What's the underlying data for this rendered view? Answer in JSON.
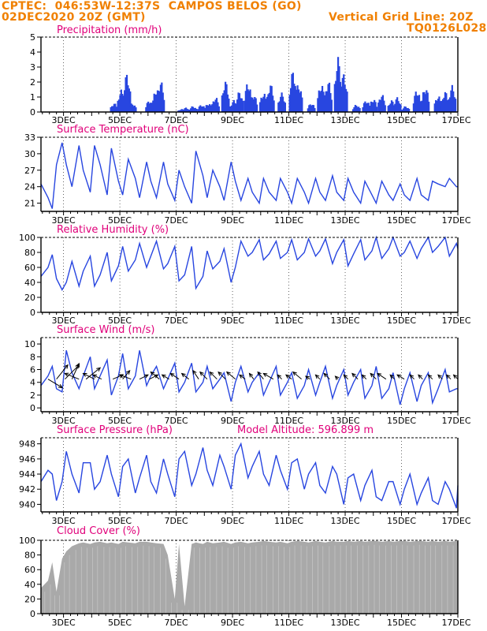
{
  "header": {
    "line1": "CPTEC:  046:53W-12:37S  CAMPOS BELOS (GO)",
    "line2": "02DEC2020 20Z (GMT)",
    "right1": "Vertical Grid Line: 20Z",
    "right2": "TQ0126L028"
  },
  "colors": {
    "header": "#f08000",
    "title": "#e0007a",
    "line": "#2846e0",
    "bar": "#2846e0",
    "cloud": "#a9a9a9",
    "axis": "#000000"
  },
  "chart_data": [
    {
      "type": "bar",
      "title": "Precipitation (mm/h)",
      "x_tick_labels": [
        "3DEC",
        "5DEC",
        "7DEC",
        "9DEC",
        "11DEC",
        "13DEC",
        "15DEC",
        "17DEC"
      ],
      "x_tick_days": [
        3,
        5,
        7,
        9,
        11,
        13,
        15,
        17
      ],
      "x_range_days": [
        2.2,
        17
      ],
      "ylim": [
        0,
        5
      ],
      "yticks": [
        0,
        1,
        2,
        3,
        4,
        5
      ],
      "bursts": [
        [
          4.8,
          0.6
        ],
        [
          5.05,
          1.5
        ],
        [
          5.25,
          2.6
        ],
        [
          5.45,
          0.6
        ],
        [
          6.05,
          0.8
        ],
        [
          6.3,
          1.6
        ],
        [
          6.45,
          2.1
        ],
        [
          7.2,
          0.2
        ],
        [
          7.35,
          0.3
        ],
        [
          7.6,
          0.4
        ],
        [
          7.9,
          0.5
        ],
        [
          8.15,
          0.6
        ],
        [
          8.4,
          1.0
        ],
        [
          8.75,
          2.1
        ],
        [
          9.05,
          0.8
        ],
        [
          9.25,
          1.4
        ],
        [
          9.55,
          2.0
        ],
        [
          9.75,
          1.2
        ],
        [
          10.1,
          1.3
        ],
        [
          10.35,
          1.9
        ],
        [
          10.75,
          1.3
        ],
        [
          11.15,
          2.8
        ],
        [
          11.35,
          1.9
        ],
        [
          11.8,
          0.6
        ],
        [
          12.15,
          1.9
        ],
        [
          12.4,
          2.1
        ],
        [
          12.75,
          3.7
        ],
        [
          12.95,
          2.6
        ],
        [
          13.4,
          0.5
        ],
        [
          13.75,
          0.8
        ],
        [
          14.0,
          0.9
        ],
        [
          14.3,
          1.2
        ],
        [
          14.65,
          0.8
        ],
        [
          14.85,
          1.0
        ],
        [
          15.15,
          0.4
        ],
        [
          15.55,
          1.5
        ],
        [
          15.85,
          1.7
        ],
        [
          16.3,
          1.1
        ],
        [
          16.55,
          1.4
        ],
        [
          16.8,
          1.8
        ]
      ]
    },
    {
      "type": "line",
      "title": "Surface Temperature (nC)",
      "x_tick_labels": [
        "3DEC",
        "5DEC",
        "7DEC",
        "9DEC",
        "11DEC",
        "13DEC",
        "15DEC",
        "17DEC"
      ],
      "x_tick_days": [
        3,
        5,
        7,
        9,
        11,
        13,
        15,
        17
      ],
      "x_range_days": [
        2.2,
        17
      ],
      "ylim": [
        19.5,
        33
      ],
      "yticks": [
        21,
        24,
        27,
        30,
        33
      ],
      "x": [
        2.2,
        2.45,
        2.6,
        2.75,
        2.95,
        3.1,
        3.3,
        3.55,
        3.7,
        3.95,
        4.1,
        4.3,
        4.55,
        4.7,
        4.95,
        5.1,
        5.3,
        5.55,
        5.7,
        5.95,
        6.1,
        6.3,
        6.55,
        6.7,
        6.95,
        7.1,
        7.3,
        7.55,
        7.7,
        7.95,
        8.1,
        8.3,
        8.55,
        8.7,
        8.95,
        9.1,
        9.3,
        9.55,
        9.7,
        9.95,
        10.1,
        10.3,
        10.55,
        10.7,
        10.95,
        11.1,
        11.3,
        11.55,
        11.7,
        11.95,
        12.1,
        12.3,
        12.55,
        12.7,
        12.95,
        13.1,
        13.3,
        13.55,
        13.7,
        13.95,
        14.1,
        14.3,
        14.55,
        14.7,
        14.95,
        15.1,
        15.3,
        15.55,
        15.7,
        15.95,
        16.1,
        16.3,
        16.55,
        16.7,
        16.95,
        17.0
      ],
      "y": [
        24.5,
        22.0,
        20.0,
        28.0,
        32.0,
        28.0,
        24.0,
        31.5,
        27.0,
        23.0,
        31.5,
        28.0,
        22.5,
        31.0,
        25.0,
        22.5,
        29.0,
        25.5,
        22.0,
        28.5,
        25.0,
        22.0,
        28.5,
        24.5,
        21.5,
        27.0,
        24.0,
        21.0,
        30.5,
        26.0,
        22.0,
        27.0,
        24.0,
        21.5,
        28.5,
        25.0,
        21.5,
        25.5,
        23.0,
        21.0,
        25.5,
        23.0,
        21.5,
        25.5,
        23.0,
        21.0,
        25.5,
        23.0,
        21.0,
        25.5,
        23.0,
        21.5,
        26.0,
        23.0,
        21.5,
        25.5,
        23.0,
        21.0,
        25.0,
        22.5,
        21.0,
        25.0,
        22.5,
        21.5,
        24.5,
        22.5,
        21.5,
        25.5,
        22.5,
        21.5,
        25.0,
        24.5,
        24.0,
        25.5,
        24.0,
        24.0
      ]
    },
    {
      "type": "line",
      "title": "Relative Humidity (%)",
      "x_tick_labels": [
        "3DEC",
        "5DEC",
        "7DEC",
        "9DEC",
        "11DEC",
        "13DEC",
        "15DEC",
        "17DEC"
      ],
      "x_tick_days": [
        3,
        5,
        7,
        9,
        11,
        13,
        15,
        17
      ],
      "x_range_days": [
        2.2,
        17
      ],
      "ylim": [
        0,
        100
      ],
      "yticks": [
        0,
        20,
        40,
        60,
        80,
        100
      ],
      "x": [
        2.2,
        2.45,
        2.6,
        2.75,
        2.95,
        3.1,
        3.3,
        3.55,
        3.7,
        3.95,
        4.1,
        4.3,
        4.55,
        4.7,
        4.95,
        5.1,
        5.3,
        5.55,
        5.7,
        5.95,
        6.1,
        6.3,
        6.55,
        6.7,
        6.95,
        7.1,
        7.3,
        7.55,
        7.7,
        7.95,
        8.1,
        8.3,
        8.55,
        8.7,
        8.95,
        9.1,
        9.3,
        9.55,
        9.7,
        9.95,
        10.1,
        10.3,
        10.55,
        10.7,
        10.95,
        11.1,
        11.3,
        11.55,
        11.7,
        11.95,
        12.1,
        12.3,
        12.55,
        12.7,
        12.95,
        13.1,
        13.3,
        13.55,
        13.7,
        13.95,
        14.1,
        14.3,
        14.55,
        14.7,
        14.95,
        15.1,
        15.3,
        15.55,
        15.7,
        15.95,
        16.1,
        16.3,
        16.55,
        16.7,
        16.95,
        17.0
      ],
      "y": [
        48.0,
        60.0,
        77.0,
        45.0,
        30.0,
        40.0,
        68.0,
        35.0,
        55.0,
        75.0,
        35.0,
        50.0,
        80.0,
        42.0,
        62.0,
        88.0,
        55.0,
        70.0,
        92.0,
        60.0,
        75.0,
        95.0,
        58.0,
        65.0,
        88.0,
        42.0,
        50.0,
        88.0,
        32.0,
        48.0,
        82.0,
        58.0,
        68.0,
        85.0,
        40.0,
        60.0,
        95.0,
        75.0,
        80.0,
        97.0,
        70.0,
        78.0,
        95.0,
        72.0,
        80.0,
        97.0,
        70.0,
        80.0,
        98.0,
        75.0,
        82.0,
        98.0,
        65.0,
        80.0,
        97.0,
        62.0,
        78.0,
        97.0,
        70.0,
        82.0,
        100.0,
        72.0,
        85.0,
        100.0,
        75.0,
        80.0,
        95.0,
        72.0,
        85.0,
        100.0,
        80.0,
        88.0,
        100.0,
        75.0,
        92.0,
        85.0
      ]
    },
    {
      "type": "line",
      "title": "Surface Wind (m/s)",
      "x_tick_labels": [
        "3DEC",
        "5DEC",
        "7DEC",
        "9DEC",
        "11DEC",
        "13DEC",
        "15DEC",
        "17DEC"
      ],
      "x_tick_days": [
        3,
        5,
        7,
        9,
        11,
        13,
        15,
        17
      ],
      "x_range_days": [
        2.2,
        17
      ],
      "ylim": [
        -0.6,
        11
      ],
      "yticks": [
        0,
        2,
        4,
        6,
        8,
        10
      ],
      "x": [
        2.2,
        2.45,
        2.6,
        2.75,
        2.95,
        3.1,
        3.3,
        3.55,
        3.7,
        3.95,
        4.1,
        4.3,
        4.55,
        4.7,
        4.95,
        5.1,
        5.3,
        5.55,
        5.7,
        5.95,
        6.1,
        6.3,
        6.55,
        6.7,
        6.95,
        7.1,
        7.3,
        7.55,
        7.7,
        7.95,
        8.1,
        8.3,
        8.55,
        8.7,
        8.95,
        9.1,
        9.3,
        9.55,
        9.7,
        9.95,
        10.1,
        10.3,
        10.55,
        10.7,
        10.95,
        11.1,
        11.3,
        11.55,
        11.7,
        11.95,
        12.1,
        12.3,
        12.55,
        12.7,
        12.95,
        13.1,
        13.3,
        13.55,
        13.7,
        13.95,
        14.1,
        14.3,
        14.55,
        14.7,
        14.95,
        15.1,
        15.3,
        15.55,
        15.7,
        15.95,
        16.1,
        16.3,
        16.55,
        16.7,
        16.95,
        17.0
      ],
      "y": [
        3.5,
        5.0,
        6.5,
        3.0,
        2.5,
        9.0,
        5.5,
        3.0,
        5.0,
        8.0,
        3.0,
        5.0,
        7.5,
        2.0,
        5.0,
        8.5,
        3.0,
        5.0,
        9.0,
        3.5,
        5.0,
        6.5,
        3.0,
        4.5,
        7.0,
        2.5,
        4.0,
        7.0,
        2.5,
        4.0,
        6.5,
        3.0,
        4.5,
        5.5,
        1.0,
        4.0,
        6.5,
        2.5,
        4.0,
        5.5,
        2.0,
        4.0,
        6.5,
        2.0,
        4.0,
        5.5,
        1.5,
        3.5,
        6.0,
        2.0,
        4.0,
        6.5,
        1.5,
        3.5,
        6.0,
        2.0,
        4.0,
        6.0,
        1.5,
        3.5,
        6.5,
        1.5,
        3.0,
        5.5,
        0.5,
        3.0,
        5.5,
        1.0,
        3.5,
        5.5,
        0.8,
        3.0,
        6.0,
        2.5,
        3.0,
        3.0
      ],
      "arrows": [
        [
          2.45,
          1.0,
          -0.6
        ],
        [
          2.75,
          0.8,
          1.0
        ],
        [
          3.05,
          1.0,
          1.0
        ],
        [
          3.3,
          0.5,
          1.1
        ],
        [
          3.55,
          -1.0,
          0.4
        ],
        [
          3.8,
          1.0,
          0.8
        ],
        [
          4.1,
          -0.8,
          0.4
        ],
        [
          4.35,
          -0.6,
          0.3
        ],
        [
          4.75,
          0.7,
          0.3
        ],
        [
          5.1,
          0.5,
          0.6
        ],
        [
          5.4,
          -0.8,
          0.3
        ],
        [
          5.7,
          0.6,
          0.3
        ],
        [
          6.05,
          0.6,
          0.3
        ],
        [
          6.4,
          -0.6,
          0.5
        ],
        [
          6.75,
          -0.5,
          0.3
        ],
        [
          7.1,
          -0.6,
          0.4
        ],
        [
          7.45,
          -0.5,
          0.4
        ],
        [
          7.8,
          -0.4,
          0.6
        ],
        [
          8.1,
          -0.5,
          0.5
        ],
        [
          8.45,
          -0.5,
          0.5
        ],
        [
          8.75,
          -0.5,
          0.5
        ],
        [
          9.1,
          -0.6,
          0.5
        ],
        [
          9.45,
          -0.4,
          0.3
        ],
        [
          9.75,
          -0.3,
          0.4
        ],
        [
          10.1,
          -0.4,
          0.5
        ],
        [
          10.45,
          -0.7,
          0.4
        ],
        [
          10.75,
          -0.3,
          0.3
        ],
        [
          11.1,
          -0.4,
          0.3
        ],
        [
          11.45,
          -0.6,
          0.5
        ],
        [
          11.75,
          -0.3,
          0.2
        ],
        [
          12.1,
          -0.3,
          0.3
        ],
        [
          12.45,
          -0.4,
          0.4
        ],
        [
          12.75,
          -0.2,
          0.2
        ],
        [
          13.1,
          -0.3,
          0.3
        ],
        [
          13.45,
          -0.4,
          0.4
        ],
        [
          13.75,
          -0.3,
          0.3
        ],
        [
          14.1,
          -0.4,
          0.4
        ],
        [
          14.45,
          -0.6,
          0.4
        ],
        [
          14.75,
          -0.3,
          0.3
        ],
        [
          15.1,
          -0.5,
          0.3
        ],
        [
          15.45,
          -0.3,
          0.3
        ],
        [
          15.75,
          -0.3,
          0.3
        ],
        [
          16.1,
          -0.3,
          0.3
        ],
        [
          16.45,
          -0.3,
          0.3
        ],
        [
          16.75,
          -0.3,
          0.3
        ],
        [
          17.0,
          -0.3,
          0.3
        ]
      ]
    },
    {
      "type": "line",
      "title": "Surface Pressure (hPa)",
      "annotation": "Model Altitude: 596.899 m",
      "x_tick_labels": [
        "3DEC",
        "5DEC",
        "7DEC",
        "9DEC",
        "11DEC",
        "13DEC",
        "15DEC",
        "17DEC"
      ],
      "x_tick_days": [
        3,
        5,
        7,
        9,
        11,
        13,
        15,
        17
      ],
      "x_range_days": [
        2.2,
        17
      ],
      "ylim": [
        939,
        948.8
      ],
      "yticks": [
        940,
        942,
        944,
        946,
        948
      ],
      "x": [
        2.2,
        2.45,
        2.6,
        2.75,
        2.95,
        3.1,
        3.3,
        3.55,
        3.7,
        3.95,
        4.1,
        4.3,
        4.55,
        4.7,
        4.95,
        5.1,
        5.3,
        5.55,
        5.7,
        5.95,
        6.1,
        6.3,
        6.55,
        6.7,
        6.95,
        7.1,
        7.3,
        7.55,
        7.7,
        7.95,
        8.1,
        8.3,
        8.55,
        8.7,
        8.95,
        9.1,
        9.3,
        9.55,
        9.7,
        9.95,
        10.1,
        10.3,
        10.55,
        10.7,
        10.95,
        11.1,
        11.3,
        11.55,
        11.7,
        11.95,
        12.1,
        12.3,
        12.55,
        12.7,
        12.95,
        13.1,
        13.3,
        13.55,
        13.7,
        13.95,
        14.1,
        14.3,
        14.55,
        14.7,
        14.95,
        15.1,
        15.3,
        15.55,
        15.7,
        15.95,
        16.1,
        16.3,
        16.55,
        16.7,
        16.95,
        17.0
      ],
      "y": [
        943.0,
        944.5,
        944.0,
        940.5,
        943.0,
        947.0,
        944.0,
        941.5,
        945.5,
        945.5,
        942.0,
        943.0,
        946.5,
        944.0,
        941.0,
        945.0,
        946.0,
        941.5,
        943.5,
        946.5,
        943.0,
        941.5,
        946.0,
        944.0,
        941.0,
        946.0,
        947.0,
        942.5,
        944.0,
        947.5,
        944.5,
        942.5,
        946.5,
        945.0,
        942.0,
        946.5,
        948.0,
        943.5,
        945.0,
        947.0,
        944.0,
        942.5,
        946.5,
        944.5,
        942.0,
        945.5,
        946.0,
        942.0,
        944.0,
        945.5,
        942.5,
        941.5,
        945.0,
        944.0,
        940.0,
        943.5,
        944.0,
        940.5,
        942.5,
        944.5,
        941.0,
        940.5,
        943.0,
        943.0,
        940.0,
        942.0,
        944.0,
        940.0,
        941.5,
        943.5,
        940.5,
        940.0,
        943.0,
        942.0,
        939.5,
        942.5
      ]
    },
    {
      "type": "area",
      "title": "Cloud Cover (%)",
      "x_tick_labels": [
        "3DEC",
        "5DEC",
        "7DEC",
        "9DEC",
        "11DEC",
        "13DEC",
        "15DEC",
        "17DEC"
      ],
      "x_tick_days": [
        3,
        5,
        7,
        9,
        11,
        13,
        15,
        17
      ],
      "x_range_days": [
        2.2,
        17
      ],
      "ylim": [
        0,
        100
      ],
      "yticks": [
        0,
        20,
        40,
        60,
        80,
        100
      ],
      "x": [
        2.2,
        2.45,
        2.6,
        2.75,
        2.95,
        3.1,
        3.3,
        3.55,
        3.7,
        3.95,
        4.1,
        4.3,
        4.55,
        4.7,
        4.95,
        5.1,
        5.3,
        5.55,
        5.7,
        5.95,
        6.1,
        6.3,
        6.55,
        6.7,
        6.95,
        7.1,
        7.3,
        7.55,
        7.7,
        7.95,
        8.1,
        8.3,
        8.55,
        8.7,
        8.95,
        9.1,
        9.3,
        9.55,
        9.7,
        9.95,
        10.1,
        10.3,
        10.55,
        10.7,
        10.95,
        11.1,
        11.3,
        11.55,
        11.7,
        11.95,
        12.1,
        12.3,
        12.55,
        12.7,
        12.95,
        13.1,
        13.3,
        13.55,
        13.7,
        13.95,
        14.1,
        14.3,
        14.55,
        14.7,
        14.95,
        15.1,
        15.3,
        15.55,
        15.7,
        15.95,
        16.1,
        16.3,
        16.55,
        16.7,
        16.95,
        17.0
      ],
      "y": [
        35.0,
        45.0,
        70.0,
        30.0,
        75.0,
        85.0,
        92.0,
        96.0,
        97.0,
        95.0,
        97.0,
        98.0,
        96.0,
        97.0,
        95.0,
        98.0,
        97.0,
        96.0,
        98.0,
        98.0,
        97.0,
        96.0,
        95.0,
        80.0,
        20.0,
        95.0,
        10.0,
        95.0,
        97.0,
        95.0,
        98.0,
        96.0,
        97.0,
        98.0,
        95.0,
        97.0,
        98.0,
        96.0,
        97.0,
        98.0,
        99.0,
        98.0,
        97.0,
        98.0,
        96.0,
        98.0,
        99.0,
        98.0,
        97.0,
        99.0,
        98.0,
        97.0,
        99.0,
        98.0,
        98.0,
        99.0,
        98.0,
        99.0,
        98.0,
        99.0,
        99.0,
        98.0,
        99.0,
        98.0,
        99.0,
        99.0,
        98.0,
        99.0,
        99.0,
        98.0,
        99.0,
        98.0,
        99.0,
        98.0,
        99.0,
        98.0
      ]
    }
  ]
}
